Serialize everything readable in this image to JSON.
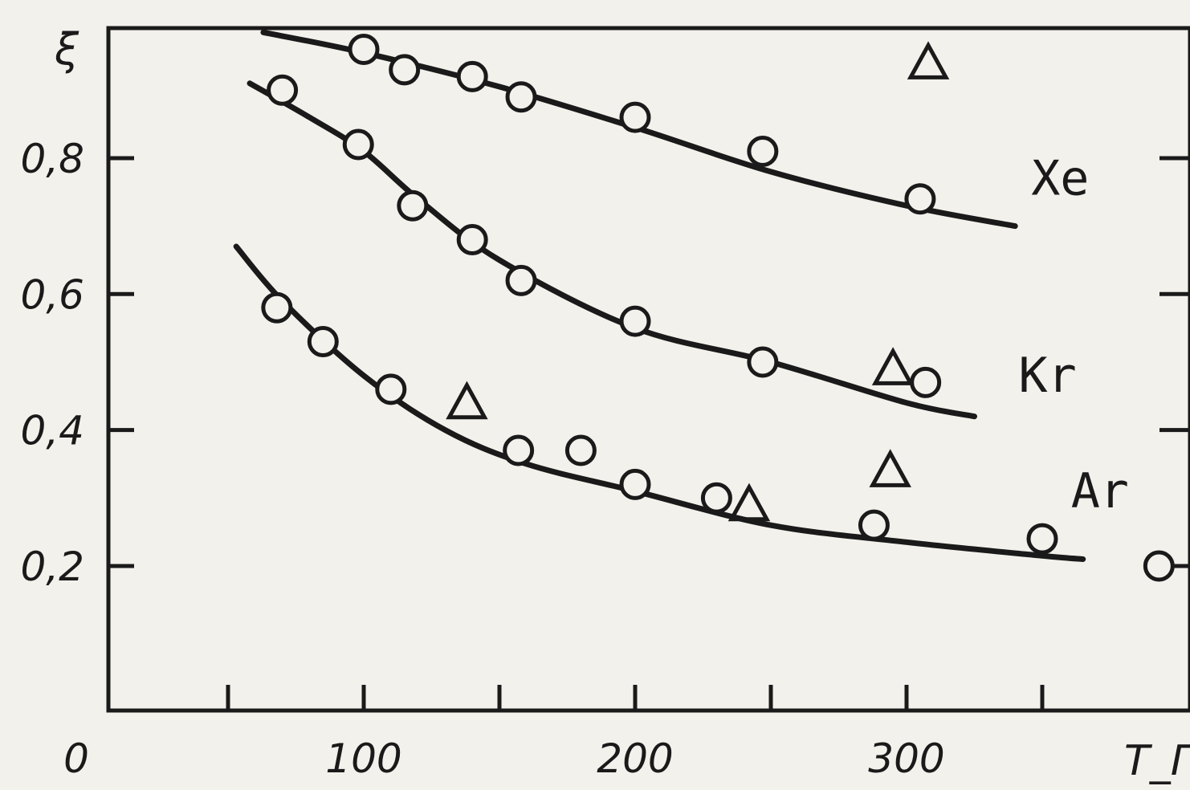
{
  "chart_data": {
    "type": "line",
    "xlabel": "T_Г",
    "ylabel": "ξ",
    "xlim": [
      0,
      400
    ],
    "ylim": [
      0,
      1.0
    ],
    "x_ticks": [
      0,
      50,
      100,
      150,
      200,
      250,
      300,
      350
    ],
    "x_tick_labels": [
      "0",
      "100",
      "200",
      "300"
    ],
    "x_tick_label_values": [
      0,
      100,
      200,
      300
    ],
    "y_ticks": [
      0.2,
      0.4,
      0.6,
      0.8
    ],
    "y_tick_labels": [
      "0,2",
      "0,4",
      "0,6",
      "0,8"
    ],
    "grid": false,
    "legend": "none",
    "series": [
      {
        "name": "Xe",
        "curve_x": [
          63,
          100,
          150,
          200,
          250,
          300,
          340
        ],
        "curve_y": [
          0.985,
          0.955,
          0.905,
          0.845,
          0.78,
          0.73,
          0.7
        ],
        "circles": [
          [
            100,
            0.96
          ],
          [
            115,
            0.93
          ],
          [
            140,
            0.92
          ],
          [
            158,
            0.89
          ],
          [
            200,
            0.86
          ],
          [
            247,
            0.81
          ],
          [
            305,
            0.74
          ]
        ],
        "triangles": [
          [
            308,
            0.94
          ]
        ]
      },
      {
        "name": "Kr",
        "curve_x": [
          58,
          80,
          100,
          120,
          150,
          200,
          250,
          300,
          325
        ],
        "curve_y": [
          0.91,
          0.86,
          0.81,
          0.74,
          0.65,
          0.55,
          0.5,
          0.44,
          0.42
        ],
        "circles": [
          [
            70,
            0.9
          ],
          [
            98,
            0.82
          ],
          [
            118,
            0.73
          ],
          [
            140,
            0.68
          ],
          [
            158,
            0.62
          ],
          [
            200,
            0.56
          ],
          [
            247,
            0.5
          ],
          [
            307,
            0.47
          ]
        ],
        "triangles": [
          [
            295,
            0.49
          ]
        ]
      },
      {
        "name": "Ar",
        "curve_x": [
          53,
          70,
          100,
          130,
          160,
          200,
          250,
          300,
          350,
          365
        ],
        "curve_y": [
          0.67,
          0.59,
          0.48,
          0.4,
          0.35,
          0.31,
          0.26,
          0.235,
          0.215,
          0.21
        ],
        "circles": [
          [
            68,
            0.58
          ],
          [
            85,
            0.53
          ],
          [
            110,
            0.46
          ],
          [
            157,
            0.37
          ],
          [
            180,
            0.37
          ],
          [
            200,
            0.32
          ],
          [
            230,
            0.3
          ],
          [
            288,
            0.26
          ],
          [
            350,
            0.24
          ],
          [
            393,
            0.2
          ]
        ],
        "triangles": [
          [
            138,
            0.44
          ],
          [
            242,
            0.29
          ],
          [
            294,
            0.34
          ]
        ]
      }
    ]
  }
}
